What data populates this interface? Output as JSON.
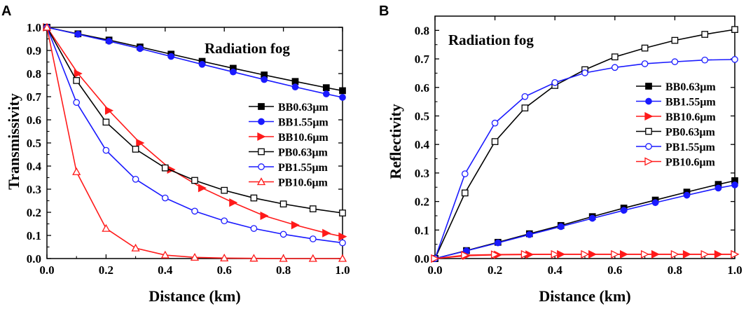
{
  "chart_data": [
    {
      "panel": "A",
      "type": "line",
      "annotation": "Radiation fog",
      "xlabel": "Distance (km)",
      "ylabel": "Transmissivity",
      "xlim": [
        0,
        1.0
      ],
      "ylim": [
        0,
        1.0
      ],
      "x_ticks": [
        "0.0",
        "0.2",
        "0.4",
        "0.6",
        "0.8",
        "1.0"
      ],
      "y_ticks": [
        "0.0",
        "0.1",
        "0.2",
        "0.3",
        "0.4",
        "0.5",
        "0.6",
        "0.7",
        "0.8",
        "0.9",
        "1.0"
      ],
      "legend_position": "center-right",
      "series": [
        {
          "name": "BB0.63μm",
          "color": "#000000",
          "marker": "square-filled",
          "x": [
            0,
            0.105,
            0.21,
            0.315,
            0.42,
            0.525,
            0.63,
            0.735,
            0.84,
            0.945,
            1.0
          ],
          "y": [
            1.0,
            0.972,
            0.945,
            0.915,
            0.884,
            0.853,
            0.823,
            0.794,
            0.766,
            0.739,
            0.726
          ]
        },
        {
          "name": "BB1.55μm",
          "color": "#1a1aff",
          "marker": "circle-filled",
          "x": [
            0,
            0.105,
            0.21,
            0.315,
            0.42,
            0.525,
            0.63,
            0.735,
            0.84,
            0.945,
            1.0
          ],
          "y": [
            1.0,
            0.97,
            0.94,
            0.908,
            0.874,
            0.84,
            0.807,
            0.774,
            0.742,
            0.712,
            0.697
          ]
        },
        {
          "name": "BB10.6μm",
          "color": "#ff1a1a",
          "marker": "triangle-right-filled",
          "x": [
            0,
            0.105,
            0.21,
            0.315,
            0.42,
            0.525,
            0.63,
            0.735,
            0.84,
            0.945,
            1.0
          ],
          "y": [
            1.0,
            0.8,
            0.64,
            0.5,
            0.385,
            0.305,
            0.242,
            0.185,
            0.145,
            0.11,
            0.095
          ]
        },
        {
          "name": "PB0.63μm",
          "color": "#000000",
          "marker": "square-open",
          "x": [
            0,
            0.1,
            0.2,
            0.3,
            0.4,
            0.5,
            0.6,
            0.7,
            0.8,
            0.9,
            1.0
          ],
          "y": [
            1.0,
            0.77,
            0.59,
            0.473,
            0.392,
            0.338,
            0.295,
            0.262,
            0.236,
            0.215,
            0.197
          ]
        },
        {
          "name": "PB1.55μm",
          "color": "#1a1aff",
          "marker": "circle-open",
          "x": [
            0,
            0.1,
            0.2,
            0.3,
            0.4,
            0.5,
            0.6,
            0.7,
            0.8,
            0.9,
            1.0
          ],
          "y": [
            1.0,
            0.675,
            0.468,
            0.343,
            0.262,
            0.205,
            0.163,
            0.13,
            0.105,
            0.085,
            0.068
          ]
        },
        {
          "name": "PB10.6μm",
          "color": "#ff1a1a",
          "marker": "triangle-up-open",
          "x": [
            0,
            0.1,
            0.2,
            0.3,
            0.4,
            0.5,
            0.6,
            0.7,
            0.8,
            0.9,
            1.0
          ],
          "y": [
            1.0,
            0.375,
            0.13,
            0.045,
            0.015,
            0.005,
            0.002,
            0.001,
            0.0,
            0.0,
            0.0
          ]
        }
      ]
    },
    {
      "panel": "B",
      "type": "line",
      "annotation": "Radiation fog",
      "xlabel": "Distance (km)",
      "ylabel": "Reflectivity",
      "xlim": [
        0,
        1.0
      ],
      "ylim": [
        0,
        0.85
      ],
      "x_ticks": [
        "0.0",
        "0.2",
        "0.4",
        "0.6",
        "0.8",
        "1.0"
      ],
      "y_ticks": [
        "0.0",
        "0.1",
        "0.2",
        "0.3",
        "0.4",
        "0.5",
        "0.6",
        "0.7",
        "0.8"
      ],
      "legend_position": "center-right",
      "series": [
        {
          "name": "BB0.63μm",
          "color": "#000000",
          "marker": "square-filled",
          "x": [
            0,
            0.105,
            0.21,
            0.315,
            0.42,
            0.525,
            0.63,
            0.735,
            0.84,
            0.945,
            1.0
          ],
          "y": [
            0.0,
            0.028,
            0.057,
            0.087,
            0.116,
            0.147,
            0.177,
            0.205,
            0.233,
            0.26,
            0.273
          ]
        },
        {
          "name": "BB1.55μm",
          "color": "#1a1aff",
          "marker": "circle-filled",
          "x": [
            0,
            0.105,
            0.21,
            0.315,
            0.42,
            0.525,
            0.63,
            0.735,
            0.84,
            0.945,
            1.0
          ],
          "y": [
            0.0,
            0.027,
            0.055,
            0.084,
            0.112,
            0.141,
            0.169,
            0.196,
            0.222,
            0.247,
            0.258
          ]
        },
        {
          "name": "BB10.6μm",
          "color": "#ff1a1a",
          "marker": "triangle-right-filled",
          "x": [
            0,
            0.105,
            0.21,
            0.315,
            0.42,
            0.525,
            0.63,
            0.735,
            0.84,
            0.945,
            1.0
          ],
          "y": [
            0.0,
            0.01,
            0.013,
            0.014,
            0.015,
            0.015,
            0.015,
            0.015,
            0.015,
            0.015,
            0.015
          ]
        },
        {
          "name": "PB0.63μm",
          "color": "#000000",
          "marker": "square-open",
          "x": [
            0,
            0.1,
            0.2,
            0.3,
            0.4,
            0.5,
            0.6,
            0.7,
            0.8,
            0.9,
            1.0
          ],
          "y": [
            0.0,
            0.23,
            0.41,
            0.528,
            0.607,
            0.662,
            0.707,
            0.738,
            0.765,
            0.786,
            0.803
          ]
        },
        {
          "name": "PB1.55μm",
          "color": "#1a1aff",
          "marker": "circle-open",
          "x": [
            0,
            0.1,
            0.2,
            0.3,
            0.4,
            0.5,
            0.6,
            0.7,
            0.8,
            0.9,
            1.0
          ],
          "y": [
            0.0,
            0.297,
            0.475,
            0.568,
            0.617,
            0.651,
            0.67,
            0.683,
            0.69,
            0.696,
            0.698
          ]
        },
        {
          "name": "PB10.6μm",
          "color": "#ff1a1a",
          "marker": "triangle-right-open",
          "x": [
            0,
            0.1,
            0.2,
            0.3,
            0.4,
            0.5,
            0.6,
            0.7,
            0.8,
            0.9,
            1.0
          ],
          "y": [
            0.0,
            0.012,
            0.014,
            0.015,
            0.015,
            0.015,
            0.015,
            0.015,
            0.015,
            0.015,
            0.015
          ]
        }
      ]
    }
  ]
}
